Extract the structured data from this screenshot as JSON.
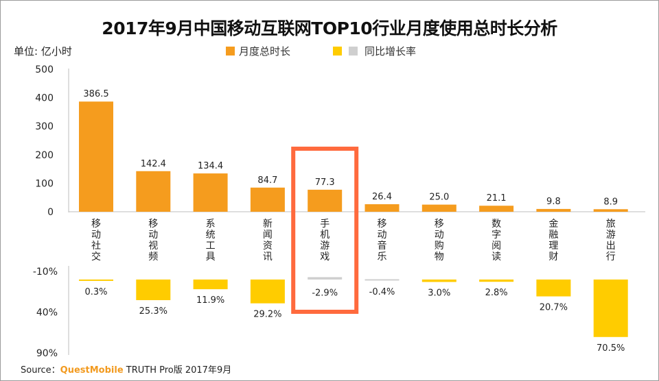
{
  "chart_data": {
    "type": "bar",
    "title": "2017年9月中国移动互联网TOP10行业月度使用总时长分析",
    "unit_label": "单位: 亿小时",
    "legend": {
      "duration": "月度总时长",
      "growth": "同比增长率",
      "duration_color": "#f59c1e",
      "growth_pos_color": "#ffcc00",
      "growth_neg_color": "#cfcfcf"
    },
    "categories": [
      "移动社交",
      "移动视频",
      "系统工具",
      "新闻资讯",
      "手机游戏",
      "移动音乐",
      "移动购物",
      "数字阅读",
      "金融理财",
      "旅游出行"
    ],
    "series": [
      {
        "name": "月度总时长",
        "values": [
          386.5,
          142.4,
          134.4,
          84.7,
          77.3,
          26.4,
          25.0,
          21.1,
          9.8,
          8.9
        ],
        "labels": [
          "386.5",
          "142.4",
          "134.4",
          "84.7",
          "77.3",
          "26.4",
          "25.0",
          "21.1",
          "9.8",
          "8.9"
        ]
      },
      {
        "name": "同比增长率",
        "values": [
          0.3,
          25.3,
          11.9,
          29.2,
          -2.9,
          -0.4,
          3.0,
          2.8,
          20.7,
          70.5
        ],
        "labels": [
          "0.3%",
          "25.3%",
          "11.9%",
          "29.2%",
          "-2.9%",
          "-0.4%",
          "3.0%",
          "2.8%",
          "20.7%",
          "70.5%"
        ]
      }
    ],
    "y_top": {
      "ticks": [
        "0",
        "100",
        "200",
        "300",
        "400",
        "500"
      ],
      "ylim": [
        0,
        500
      ]
    },
    "y_bottom": {
      "ticks": [
        "-10%",
        "40%",
        "90%"
      ],
      "ylim": [
        -10,
        90
      ]
    },
    "highlight_category": "手机游戏",
    "highlight_color": "#ff6a3d",
    "source": {
      "prefix": "Source：",
      "brand": "QuestMobile",
      "rest": " TRUTH Pro版 2017年9月"
    }
  }
}
